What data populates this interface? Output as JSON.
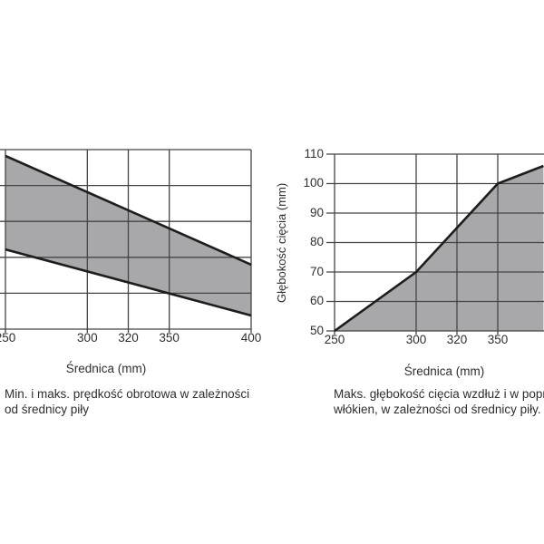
{
  "colors": {
    "background": "#ffffff",
    "fill_gray": "#a8a8ab",
    "grid": "#454545",
    "data_line": "#1d1d1d",
    "text": "#2e2e2e"
  },
  "chart_data": [
    {
      "type": "area",
      "subtype": "band-between-min-and-max-lines",
      "title": "",
      "xlabel": "Średnica (mm)",
      "ylabel": "",
      "x_ticks": [
        250,
        300,
        320,
        350,
        400
      ],
      "x_scale": {
        "ticks": [
          250,
          300,
          320,
          350,
          400
        ],
        "fractions": [
          0,
          0.3333,
          0.5,
          0.6667,
          1
        ]
      },
      "y_axis_labels_visible": false,
      "y_gridline_rows": 5,
      "series": [
        {
          "name": "maks. prędkość (górna linia)",
          "x": [
            250,
            400
          ],
          "y_plot_frac": [
            0.035,
            0.641
          ]
        },
        {
          "name": "min. prędkość (dolna linia)",
          "x": [
            250,
            400
          ],
          "y_plot_frac": [
            0.556,
            0.924
          ]
        }
      ],
      "fill_between_series": true,
      "caption_lines": [
        "Min. i maks. prędkość obrotowa w zależności",
        "od średnicy piły"
      ]
    },
    {
      "type": "area",
      "subtype": "line-with-area-fill-below",
      "title": "",
      "xlabel": "Średnica (mm)",
      "ylabel": "Głębokość cięcia (mm)",
      "x_ticks": [
        250,
        300,
        320,
        350
      ],
      "x_scale": {
        "ticks": [
          250,
          300,
          320,
          350,
          400
        ],
        "fractions": [
          0,
          0.3333,
          0.5,
          0.6667,
          1
        ]
      },
      "y_ticks": [
        110,
        100,
        90,
        80,
        70,
        60,
        50
      ],
      "ylim": [
        50,
        110
      ],
      "series": [
        {
          "name": "maks. głębokość cięcia",
          "points": [
            [
              250,
              50
            ],
            [
              300,
              70
            ],
            [
              350,
              100
            ],
            [
              378,
              106
            ]
          ]
        }
      ],
      "caption_lines": [
        "Maks. głębokość cięcia wzdłuż i w popr",
        "włókien, w zależności od średnicy piły."
      ]
    }
  ]
}
